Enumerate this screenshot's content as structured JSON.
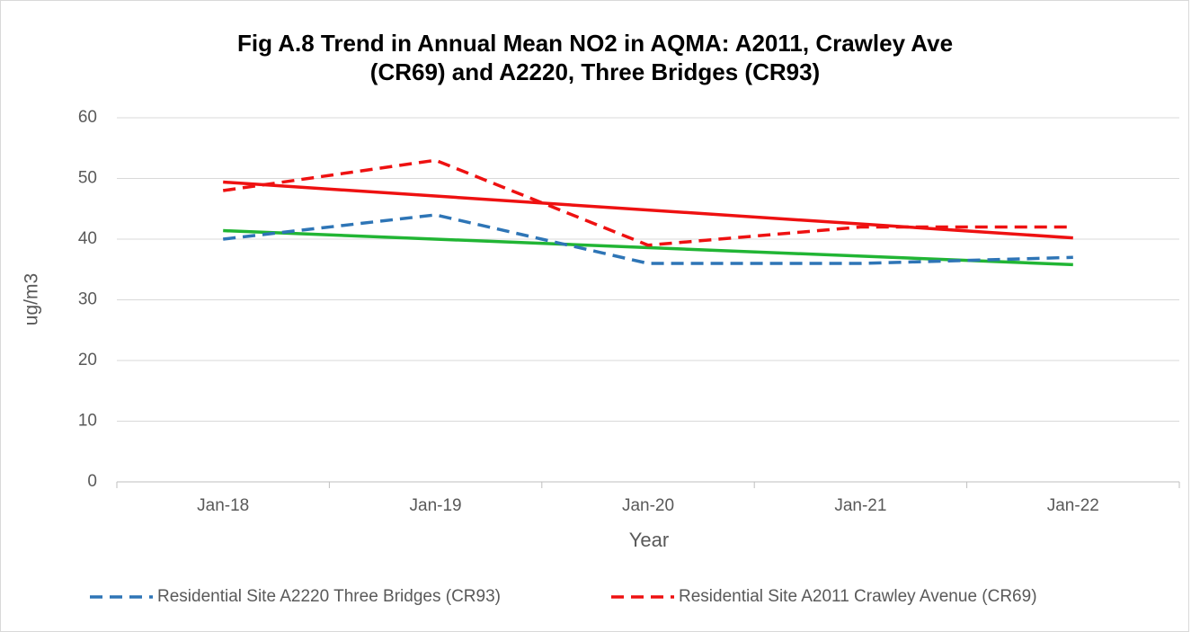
{
  "chart_data": {
    "type": "line",
    "title": [
      "Fig A.8 Trend in Annual Mean NO2 in AQMA: A2011, Crawley Ave",
      "(CR69) and A2220, Three Bridges (CR93)"
    ],
    "x_label": "Year",
    "y_label": "ug/m3",
    "categories": [
      "Jan-18",
      "Jan-19",
      "Jan-20",
      "Jan-21",
      "Jan-22"
    ],
    "series": [
      {
        "name": "Residential Site A2220 Three Bridges (CR93)",
        "color": "#2e75b6",
        "dashed": true,
        "trendline": true,
        "trendline_color": "#21b534",
        "values": [
          40,
          44,
          36,
          36,
          37
        ]
      },
      {
        "name": "Residential Site A2011 Crawley Avenue (CR69)",
        "color": "#ee1111",
        "dashed": true,
        "trendline": true,
        "trendline_color": "#ee1111",
        "values": [
          48,
          53,
          39,
          42,
          42
        ]
      }
    ],
    "ylim": [
      0,
      60
    ],
    "yticks": [
      0,
      10,
      20,
      30,
      40,
      50,
      60
    ],
    "grid": true,
    "legend": "bottom"
  }
}
